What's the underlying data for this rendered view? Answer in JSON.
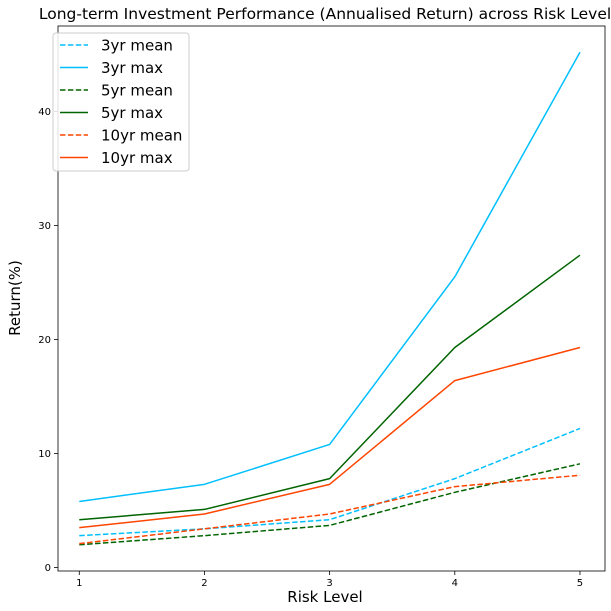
{
  "chart_data": {
    "type": "line",
    "title": "Long-term Investment Performance (Annualised Return) across Risk Level",
    "xlabel": "Risk Level",
    "ylabel": "Return(%)",
    "x": [
      1,
      2,
      3,
      4,
      5
    ],
    "x_ticks": [
      "1",
      "2",
      "3",
      "4",
      "5"
    ],
    "y_ticks": [
      "0",
      "10",
      "20",
      "30",
      "40"
    ],
    "xlim": [
      0.83,
      5.2
    ],
    "ylim": [
      -0.3,
      47.5
    ],
    "grid": false,
    "legend_position": "top-left",
    "series": [
      {
        "name": "3yr mean",
        "color": "#00bfff",
        "style": "dashed",
        "values": [
          2.8,
          3.4,
          4.2,
          7.8,
          12.2
        ]
      },
      {
        "name": "3yr max",
        "color": "#00bfff",
        "style": "solid",
        "values": [
          5.8,
          7.3,
          10.8,
          25.5,
          45.2
        ]
      },
      {
        "name": "5yr mean",
        "color": "#006400",
        "style": "dashed",
        "values": [
          2.0,
          2.8,
          3.7,
          6.6,
          9.1
        ]
      },
      {
        "name": "5yr max",
        "color": "#006400",
        "style": "solid",
        "values": [
          4.2,
          5.1,
          7.8,
          19.3,
          27.4
        ]
      },
      {
        "name": "10yr mean",
        "color": "#ff4500",
        "style": "dashed",
        "values": [
          2.1,
          3.4,
          4.7,
          7.1,
          8.1
        ]
      },
      {
        "name": "10yr max",
        "color": "#ff4500",
        "style": "solid",
        "values": [
          3.5,
          4.7,
          7.3,
          16.4,
          19.3
        ]
      }
    ]
  }
}
